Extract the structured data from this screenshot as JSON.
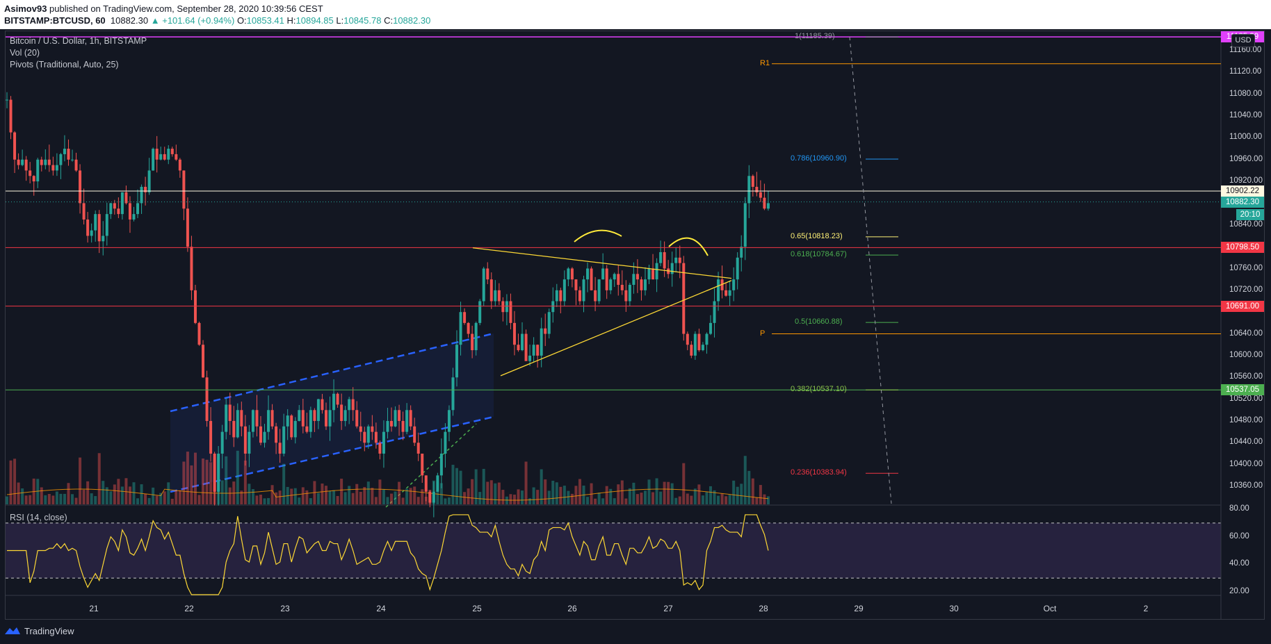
{
  "header": {
    "publisher": "Asimov93",
    "published_text": "published on TradingView.com, September 28, 2020 10:39:56 CEST",
    "symbol": "BITSTAMP:BTCUSD, 60",
    "last": "10882.30",
    "change": "▲ +101.64 (+0.94%)",
    "o_label": "O:",
    "o": "10853.41",
    "h_label": "H:",
    "h": "10894.85",
    "l_label": "L:",
    "l": "10845.78",
    "c_label": "C:",
    "c": "10882.30"
  },
  "legend": {
    "title": "Bitcoin / U.S. Dollar, 1h, BITSTAMP",
    "vol": "Vol (20)",
    "pivots": "Pivots (Traditional, Auto, 25)",
    "rsi": "RSI (14, close)"
  },
  "currency": "USD",
  "price_axis": [
    "11160.00",
    "11120.00",
    "11080.00",
    "11040.00",
    "11000.00",
    "10960.00",
    "10920.00",
    "10840.00",
    "10760.00",
    "10720.00",
    "10640.00",
    "10600.00",
    "10560.00",
    "10520.00",
    "10480.00",
    "10440.00",
    "10400.00",
    "10360.00"
  ],
  "rsi_axis": [
    "80.00",
    "60.00",
    "40.00",
    "20.00"
  ],
  "price_tags": {
    "top": "11185.39",
    "hline_white": "10902.22",
    "last": "10882.30",
    "countdown": "20:10",
    "red1": "10798.50",
    "red2": "10691.00",
    "green": "10537.05"
  },
  "fib_levels": [
    {
      "label": "1(11185.39)",
      "color": "#9598a1",
      "price": 11185.39
    },
    {
      "label": "0.786(10960.90)",
      "color": "#2196f3",
      "price": 10960.9
    },
    {
      "label": "0.65(10818.23)",
      "color": "#fff176",
      "price": 10818.23
    },
    {
      "label": "0.618(10784.67)",
      "color": "#4caf50",
      "price": 10784.67
    },
    {
      "label": "0.5(10660.88)",
      "color": "#4caf50",
      "price": 10660.88
    },
    {
      "label": "0.382(10537.10)",
      "color": "#8bc34a",
      "price": 10537.1
    },
    {
      "label": "0.236(10383.94)",
      "color": "#f23645",
      "price": 10383.94
    }
  ],
  "pivots": [
    {
      "label": "R1",
      "price": 11136
    },
    {
      "label": "P",
      "price": 10640
    }
  ],
  "x_axis": [
    "21",
    "22",
    "23",
    "24",
    "25",
    "26",
    "27",
    "28",
    "29",
    "30",
    "Oct",
    "2"
  ],
  "colors": {
    "up": "#26a69a",
    "down": "#ef5350",
    "bg": "#131722",
    "magenta": "#e040fb",
    "red_line": "#f23645",
    "green_line": "#4caf50"
  },
  "footer": {
    "brand": "TradingView",
    "logo_icon": "tradingview-logo-icon"
  },
  "chart_data": {
    "type": "candlestick",
    "symbol": "BITSTAMP:BTCUSD",
    "interval": "1h",
    "ylim": [
      10330,
      11200
    ],
    "rsi_ylim": [
      15,
      82
    ],
    "rsi_levels": [
      70,
      30
    ],
    "horizontal_lines": [
      11185.39,
      10902.22,
      10798.5,
      10691.0,
      10537.05
    ],
    "last_price": 10882.3,
    "candles_close": [
      11070,
      11010,
      10960,
      10950,
      10960,
      10940,
      10930,
      10920,
      10960,
      10950,
      10960,
      10950,
      10940,
      10950,
      10970,
      10980,
      10960,
      10960,
      10940,
      10880,
      10850,
      10820,
      10830,
      10860,
      10810,
      10820,
      10860,
      10880,
      10870,
      10860,
      10900,
      10880,
      10850,
      10860,
      10880,
      10910,
      10900,
      10940,
      10980,
      10960,
      10970,
      10960,
      10980,
      10970,
      10960,
      10940,
      10870,
      10800,
      10720,
      10660,
      10620,
      10560,
      10480,
      10420,
      10350,
      10420,
      10460,
      10510,
      10480,
      10450,
      10500,
      10470,
      10420,
      10460,
      10500,
      10470,
      10440,
      10460,
      10500,
      10470,
      10440,
      10420,
      10470,
      10490,
      10450,
      10480,
      10500,
      10470,
      10460,
      10500,
      10480,
      10520,
      10500,
      10470,
      10500,
      10530,
      10510,
      10480,
      10500,
      10520,
      10500,
      10470,
      10460,
      10440,
      10470,
      10460,
      10440,
      10420,
      10460,
      10480,
      10470,
      10500,
      10480,
      10460,
      10500,
      10470,
      10440,
      10420,
      10380,
      10350,
      10330,
      10350,
      10380,
      10420,
      10460,
      10500,
      10560,
      10620,
      10680,
      10660,
      10640,
      10610,
      10660,
      10700,
      10760,
      10740,
      10700,
      10720,
      10700,
      10680,
      10700,
      10660,
      10620,
      10610,
      10640,
      10590,
      10600,
      10620,
      10600,
      10650,
      10640,
      10680,
      10700,
      10720,
      10700,
      10740,
      10760,
      10740,
      10720,
      10700,
      10740,
      10760,
      10720,
      10700,
      10740,
      10760,
      10720,
      10740,
      10750,
      10730,
      10720,
      10700,
      10730,
      10750,
      10740,
      10720,
      10740,
      10760,
      10740,
      10770,
      10790,
      10760,
      10750,
      10770,
      10780,
      10770,
      10640,
      10620,
      10600,
      10640,
      10610,
      10620,
      10640,
      10660,
      10700,
      10740,
      10720,
      10710,
      10720,
      10740,
      10780,
      10800,
      10880,
      10930,
      10910,
      10900,
      10890,
      10870,
      10880
    ]
  }
}
